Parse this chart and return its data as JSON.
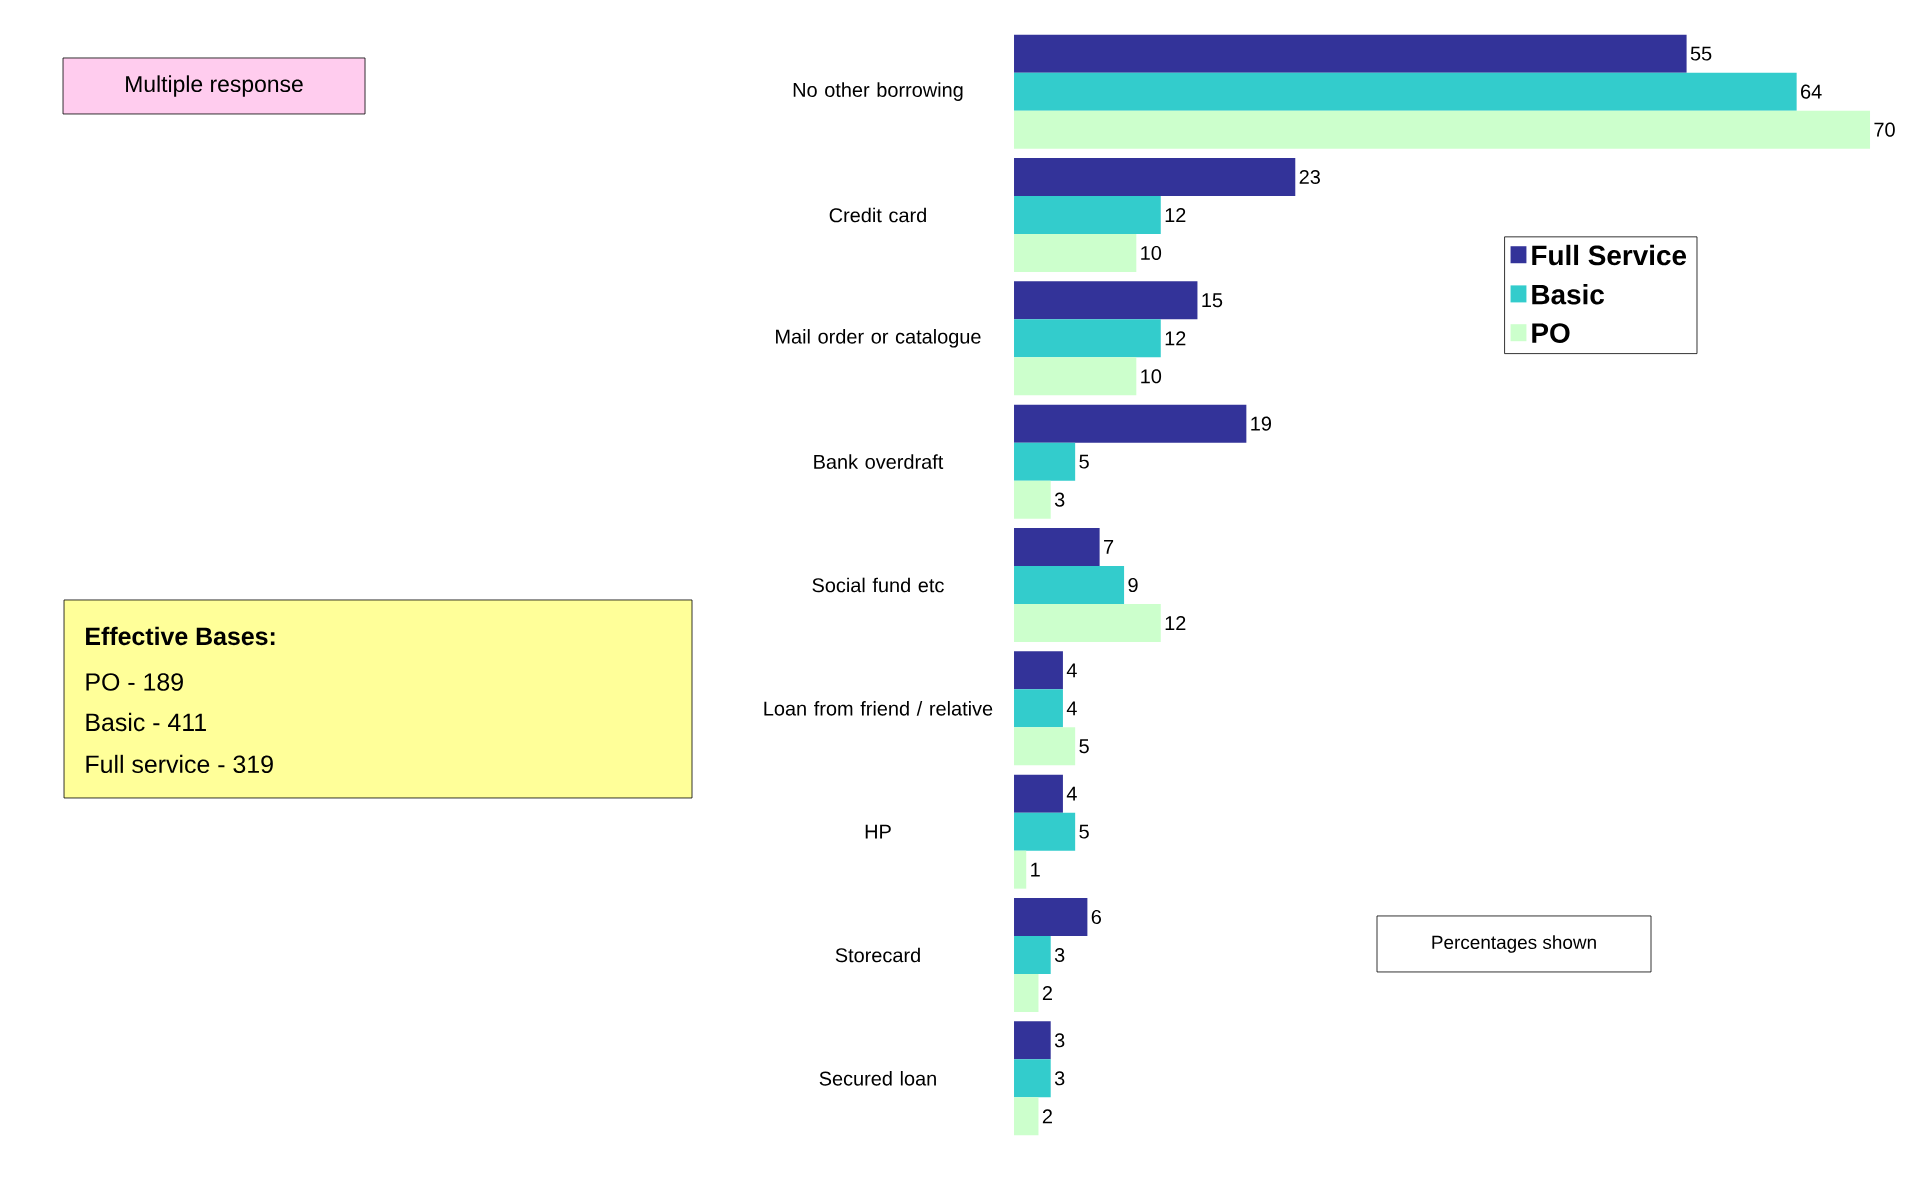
{
  "chart_data": {
    "type": "bar",
    "orientation": "horizontal",
    "categories": [
      "No other borrowing",
      "Credit card",
      "Mail order or catalogue",
      "Bank overdraft",
      "Social fund etc",
      "Loan from friend / relative",
      "HP",
      "Storecard",
      "Secured loan"
    ],
    "series": [
      {
        "name": "Full Service",
        "color": "#333399",
        "values": [
          55,
          23,
          15,
          19,
          7,
          4,
          4,
          6,
          3
        ]
      },
      {
        "name": "Basic",
        "color": "#33cccc",
        "values": [
          64,
          12,
          12,
          5,
          9,
          4,
          5,
          3,
          3
        ]
      },
      {
        "name": "PO",
        "color": "#ccffcc",
        "values": [
          70,
          10,
          10,
          3,
          12,
          5,
          1,
          2,
          2
        ]
      }
    ],
    "data_labels": true,
    "legend": "right",
    "annotations": [
      "Multiple response",
      "Effective Bases:",
      "PO - 189",
      "Basic - 411",
      "Full service - 319",
      "Percentages shown"
    ]
  }
}
